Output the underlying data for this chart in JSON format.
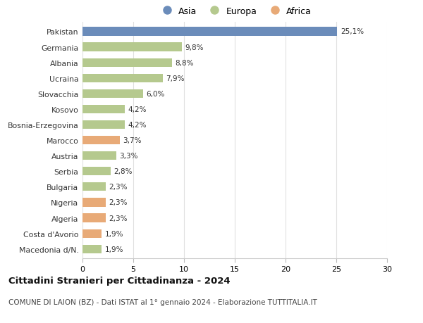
{
  "countries": [
    "Pakistan",
    "Germania",
    "Albania",
    "Ucraina",
    "Slovacchia",
    "Kosovo",
    "Bosnia-Erzegovina",
    "Marocco",
    "Austria",
    "Serbia",
    "Bulgaria",
    "Nigeria",
    "Algeria",
    "Costa d'Avorio",
    "Macedonia d/N."
  ],
  "values": [
    25.1,
    9.8,
    8.8,
    7.9,
    6.0,
    4.2,
    4.2,
    3.7,
    3.3,
    2.8,
    2.3,
    2.3,
    2.3,
    1.9,
    1.9
  ],
  "continents": [
    "Asia",
    "Europa",
    "Europa",
    "Europa",
    "Europa",
    "Europa",
    "Europa",
    "Africa",
    "Europa",
    "Europa",
    "Europa",
    "Africa",
    "Africa",
    "Africa",
    "Europa"
  ],
  "colors": {
    "Asia": "#6b8cba",
    "Europa": "#b5c98e",
    "Africa": "#e8aa77"
  },
  "legend_labels": [
    "Asia",
    "Europa",
    "Africa"
  ],
  "legend_colors": [
    "#6b8cba",
    "#b5c98e",
    "#e8aa77"
  ],
  "title": "Cittadini Stranieri per Cittadinanza - 2024",
  "subtitle": "COMUNE DI LAION (BZ) - Dati ISTAT al 1° gennaio 2024 - Elaborazione TUTTITALIA.IT",
  "xlim": [
    0,
    30
  ],
  "xticks": [
    0,
    5,
    10,
    15,
    20,
    25,
    30
  ],
  "background_color": "#ffffff",
  "grid_color": "#e0e0e0",
  "bar_height": 0.55
}
